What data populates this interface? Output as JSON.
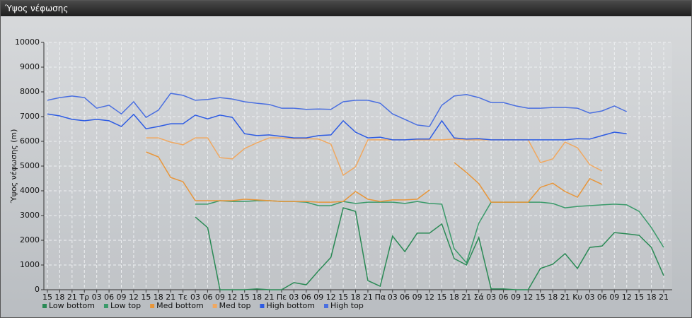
{
  "chart_data": {
    "type": "line",
    "title": "Ύψος νέφωσης",
    "y_label": "Ύψος νέφωσης (m)",
    "categories": [
      "15",
      "18",
      "21",
      "Τρ",
      "03",
      "06",
      "09",
      "12",
      "15",
      "18",
      "21",
      "Τε",
      "03",
      "06",
      "09",
      "12",
      "15",
      "18",
      "21",
      "Πε",
      "03",
      "06",
      "09",
      "12",
      "15",
      "18",
      "21",
      "Πα",
      "03",
      "06",
      "09",
      "12",
      "15",
      "18",
      "21",
      "Σά",
      "03",
      "06",
      "09",
      "12",
      "15",
      "18",
      "21",
      "Κυ",
      "03",
      "06",
      "09",
      "12",
      "15",
      "18",
      "21"
    ],
    "ylim": [
      0,
      10000
    ],
    "yticks": [
      0,
      1000,
      2000,
      3000,
      4000,
      5000,
      6000,
      7000,
      8000,
      9000,
      10000
    ],
    "grid": true,
    "legend": "bottom",
    "series": [
      {
        "name": "Low bottom",
        "color": "#2a8a55",
        "values": [
          null,
          null,
          null,
          null,
          null,
          null,
          null,
          null,
          null,
          null,
          null,
          null,
          2940,
          2510,
          0,
          0,
          0,
          30,
          0,
          0,
          290,
          200,
          770,
          1310,
          3310,
          3170,
          370,
          140,
          2170,
          1540,
          2290,
          2290,
          2660,
          1260,
          1000,
          2110,
          30,
          30,
          0,
          0,
          860,
          1030,
          1460,
          860,
          1710,
          1770,
          2310,
          2260,
          2200,
          1710,
          570
        ]
      },
      {
        "name": "Low top",
        "color": "#3a9a6a",
        "values": [
          null,
          null,
          null,
          null,
          null,
          null,
          null,
          null,
          null,
          null,
          null,
          null,
          3460,
          3460,
          3600,
          3570,
          3570,
          3600,
          3600,
          3570,
          3570,
          3540,
          3400,
          3400,
          3570,
          3490,
          3540,
          3540,
          3540,
          3490,
          3570,
          3490,
          3460,
          1660,
          1090,
          2690,
          3540,
          3540,
          3540,
          3540,
          3540,
          3490,
          3310,
          3370,
          3400,
          3430,
          3460,
          3430,
          3170,
          2510,
          1710
        ]
      },
      {
        "name": "Med bottom",
        "color": "#e8963a",
        "values": [
          null,
          null,
          null,
          null,
          null,
          null,
          null,
          null,
          5570,
          5370,
          4540,
          4370,
          3600,
          3600,
          3600,
          3600,
          3660,
          3630,
          3600,
          3570,
          3570,
          3570,
          3540,
          3540,
          3570,
          3970,
          3660,
          3570,
          3630,
          3630,
          3660,
          4030,
          null,
          5140,
          4740,
          4290,
          3540,
          3540,
          3540,
          3540,
          4140,
          4310,
          3970,
          3740,
          4490,
          4260,
          null,
          null,
          null,
          null,
          null
        ]
      },
      {
        "name": "Med top",
        "color": "#f0a860",
        "values": [
          null,
          null,
          null,
          null,
          null,
          null,
          null,
          null,
          6140,
          6140,
          5970,
          5860,
          6140,
          6140,
          5340,
          5290,
          5710,
          5940,
          6140,
          6140,
          6110,
          6110,
          6090,
          5890,
          4630,
          4970,
          6060,
          6060,
          6060,
          6060,
          6060,
          6060,
          6060,
          6090,
          6060,
          6060,
          6060,
          6060,
          6060,
          6060,
          5140,
          5290,
          5970,
          5740,
          5060,
          4800,
          null,
          null,
          null,
          null,
          null
        ]
      },
      {
        "name": "High bottom",
        "color": "#2d5be3",
        "values": [
          7110,
          7030,
          6890,
          6830,
          6890,
          6830,
          6600,
          7090,
          6510,
          6600,
          6710,
          6710,
          7060,
          6910,
          7060,
          6970,
          6310,
          6230,
          6260,
          6200,
          6140,
          6140,
          6230,
          6260,
          6830,
          6370,
          6140,
          6170,
          6060,
          6060,
          6090,
          6090,
          6830,
          6140,
          6090,
          6110,
          6060,
          6060,
          6060,
          6060,
          6060,
          6060,
          6060,
          6110,
          6090,
          6230,
          6370,
          6310,
          null,
          null,
          null
        ]
      },
      {
        "name": "High top",
        "color": "#4a6fe0",
        "values": [
          7660,
          7770,
          7830,
          7770,
          7340,
          7460,
          7110,
          7600,
          6970,
          7260,
          7940,
          7860,
          7660,
          7690,
          7770,
          7710,
          7600,
          7540,
          7490,
          7340,
          7340,
          7290,
          7310,
          7290,
          7600,
          7660,
          7660,
          7540,
          7110,
          6890,
          6660,
          6600,
          7460,
          7830,
          7890,
          7770,
          7570,
          7570,
          7430,
          7340,
          7340,
          7370,
          7370,
          7340,
          7140,
          7230,
          7430,
          7200,
          null,
          null,
          null
        ]
      }
    ]
  }
}
